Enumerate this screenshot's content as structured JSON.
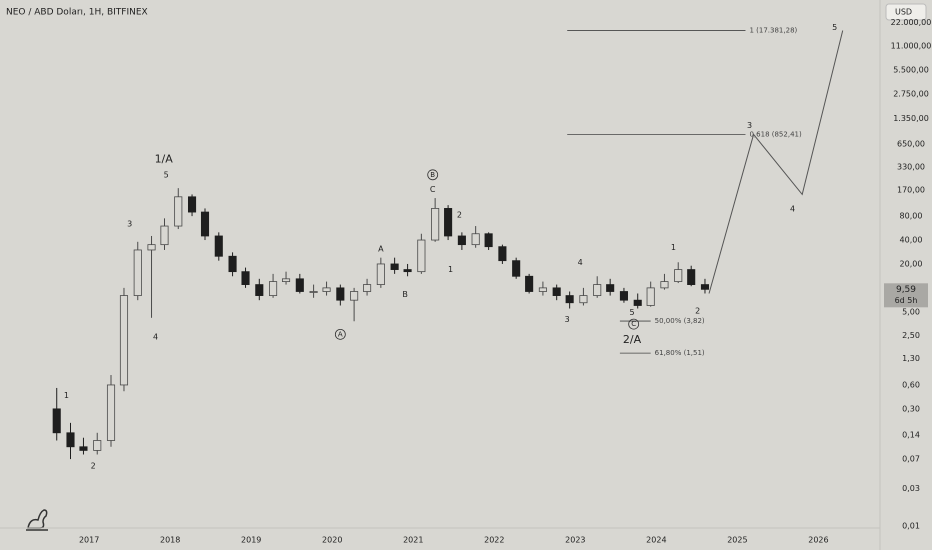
{
  "chart_data": {
    "type": "candlestick",
    "title": "NEO / ABD Doları, 1H, BITFINEX",
    "currency_button": "USD",
    "log_scale": true,
    "grid": false,
    "xlim": [
      2015.9,
      2026.76
    ],
    "ylim": [
      0.0095,
      42000
    ],
    "xticks": [
      2017,
      2018,
      2019,
      2020,
      2021,
      2022,
      2023,
      2024,
      2025,
      2026
    ],
    "yticks": [
      {
        "value": 22000,
        "label": "22.000,00"
      },
      {
        "value": 11000,
        "label": "11.000,00"
      },
      {
        "value": 5500,
        "label": "5.500,00"
      },
      {
        "value": 2750,
        "label": "2.750,00"
      },
      {
        "value": 1350,
        "label": "1.350,00"
      },
      {
        "value": 650,
        "label": "650,00"
      },
      {
        "value": 330,
        "label": "330,00"
      },
      {
        "value": 170,
        "label": "170,00"
      },
      {
        "value": 80,
        "label": "80,00"
      },
      {
        "value": 40,
        "label": "40,00"
      },
      {
        "value": 20,
        "label": "20,00"
      },
      {
        "value": 5,
        "label": "5,00"
      },
      {
        "value": 2.5,
        "label": "2,50"
      },
      {
        "value": 1.3,
        "label": "1,30"
      },
      {
        "value": 0.6,
        "label": "0,60"
      },
      {
        "value": 0.3,
        "label": "0,30"
      },
      {
        "value": 0.14,
        "label": "0,14"
      },
      {
        "value": 0.07,
        "label": "0,07"
      },
      {
        "value": 0.03,
        "label": "0,03"
      },
      {
        "value": 0.01,
        "label": "0,01"
      }
    ],
    "up_color": "#4a4a4a",
    "down_color": "#1e1e1e",
    "x": [
      2016.6,
      2016.77,
      2016.93,
      2017.1,
      2017.27,
      2017.43,
      2017.6,
      2017.77,
      2017.93,
      2018.1,
      2018.27,
      2018.43,
      2018.6,
      2018.77,
      2018.93,
      2019.1,
      2019.27,
      2019.43,
      2019.6,
      2019.77,
      2019.93,
      2020.1,
      2020.27,
      2020.43,
      2020.6,
      2020.77,
      2020.93,
      2021.1,
      2021.27,
      2021.43,
      2021.6,
      2021.77,
      2021.93,
      2022.1,
      2022.27,
      2022.43,
      2022.6,
      2022.77,
      2022.93,
      2023.1,
      2023.27,
      2023.43,
      2023.6,
      2023.77,
      2023.93,
      2024.1,
      2024.27,
      2024.43,
      2024.6
    ],
    "open": [
      0.3,
      0.15,
      0.1,
      0.09,
      0.12,
      0.6,
      8,
      30,
      35,
      60,
      140,
      90,
      45,
      25,
      16,
      11,
      8,
      12,
      13,
      9,
      9,
      10,
      7,
      9,
      11,
      20,
      17,
      16,
      40,
      100,
      45,
      35,
      48,
      33,
      22,
      14,
      9,
      10,
      8,
      6.5,
      8,
      11,
      9,
      7,
      6,
      10,
      12,
      17,
      11
    ],
    "high": [
      0.55,
      0.2,
      0.13,
      0.15,
      0.8,
      10,
      38,
      45,
      75,
      180,
      150,
      100,
      50,
      28,
      18,
      13,
      15,
      16,
      15,
      11,
      12,
      11,
      10,
      13,
      24,
      24,
      20,
      48,
      135,
      110,
      50,
      60,
      50,
      35,
      24,
      15,
      12,
      11,
      9,
      10,
      14,
      13,
      10,
      8.5,
      12,
      15,
      21,
      19,
      13
    ],
    "low": [
      0.12,
      0.07,
      0.08,
      0.08,
      0.1,
      0.5,
      7,
      4.2,
      30,
      55,
      80,
      40,
      22,
      14,
      10,
      7,
      7.5,
      11,
      8.5,
      7.5,
      8,
      6,
      3.8,
      8,
      10,
      15,
      14,
      15,
      38,
      40,
      30,
      32,
      30,
      20,
      13,
      8.5,
      8,
      7,
      5.5,
      6,
      7.5,
      8,
      6.5,
      5.5,
      5.8,
      9.5,
      11.5,
      10.5,
      8.5
    ],
    "close": [
      0.15,
      0.1,
      0.09,
      0.12,
      0.6,
      8,
      30,
      35,
      60,
      140,
      90,
      45,
      25,
      16,
      11,
      8,
      12,
      13,
      9,
      9,
      10,
      7,
      9,
      11,
      20,
      17,
      16,
      40,
      100,
      45,
      35,
      48,
      33,
      22,
      14,
      9,
      10,
      8,
      6.5,
      8,
      11,
      9,
      7,
      6,
      10,
      12,
      17,
      11,
      9.59
    ],
    "last_price": {
      "value": 9.59,
      "label": "9,59"
    },
    "countdown": "6d 5h",
    "projection": {
      "color": "#555555",
      "x": [
        2024.65,
        2025.2,
        2025.8,
        2026.3
      ],
      "values": [
        8.5,
        852.41,
        150,
        17381.28
      ]
    },
    "levels": [
      {
        "label": "1 (17.381,28)",
        "value": 17381.28,
        "x": [
          2022.9,
          2025.1
        ]
      },
      {
        "label": "0,618 (852,41)",
        "value": 852.41,
        "x": [
          2022.9,
          2025.1
        ]
      },
      {
        "label": "50,00% (3,82)",
        "value": 3.82,
        "x": [
          2023.55,
          2023.93
        ]
      },
      {
        "label": "61,80% (1,51)",
        "value": 1.51,
        "x": [
          2023.55,
          2023.93
        ]
      }
    ],
    "annotations": [
      {
        "text": "1",
        "x": 2016.72,
        "y": 0.44
      },
      {
        "text": "2",
        "x": 2017.05,
        "y": 0.057
      },
      {
        "text": "3",
        "x": 2017.5,
        "y": 64
      },
      {
        "text": "4",
        "x": 2017.82,
        "y": 2.4
      },
      {
        "text": "5",
        "x": 2017.95,
        "y": 265
      },
      {
        "text": "1/A",
        "x": 2017.92,
        "y": 410,
        "large": true
      },
      {
        "text": "A",
        "x": 2020.6,
        "y": 31
      },
      {
        "text": "B",
        "x": 2020.9,
        "y": 8.2
      },
      {
        "text": "A",
        "x": 2020.1,
        "y": 2.6,
        "circled": true
      },
      {
        "text": "B",
        "x": 2021.24,
        "y": 265,
        "circled": true
      },
      {
        "text": "C",
        "x": 2021.24,
        "y": 172
      },
      {
        "text": "2",
        "x": 2021.57,
        "y": 83
      },
      {
        "text": "1",
        "x": 2021.46,
        "y": 17
      },
      {
        "text": "4",
        "x": 2023.06,
        "y": 21
      },
      {
        "text": "3",
        "x": 2022.9,
        "y": 4.0
      },
      {
        "text": "5",
        "x": 2023.7,
        "y": 4.9
      },
      {
        "text": "C",
        "x": 2023.72,
        "y": 3.5,
        "circled": true
      },
      {
        "text": "2/A",
        "x": 2023.7,
        "y": 2.2,
        "large": true
      },
      {
        "text": "1",
        "x": 2024.21,
        "y": 32
      },
      {
        "text": "2",
        "x": 2024.51,
        "y": 5.1
      },
      {
        "text": "3",
        "x": 2025.15,
        "y": 1100
      },
      {
        "text": "4",
        "x": 2025.68,
        "y": 99
      },
      {
        "text": "5",
        "x": 2026.2,
        "y": 18900
      }
    ]
  }
}
